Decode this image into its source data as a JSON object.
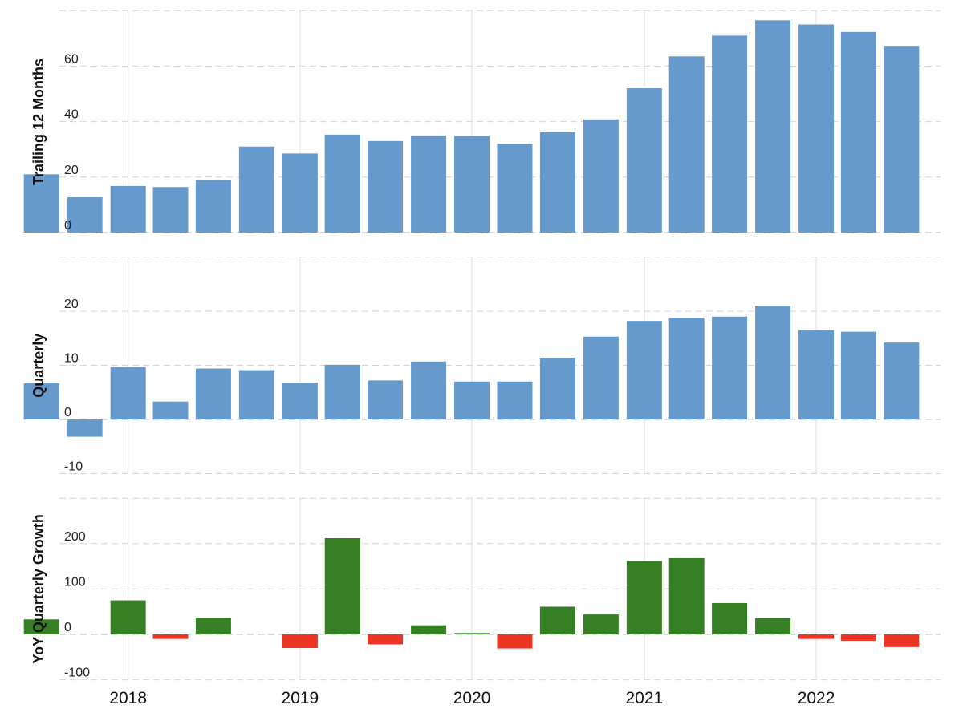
{
  "chart_data": [
    {
      "type": "bar",
      "ylabel": "Trailing 12 Months",
      "ylim": [
        0,
        80
      ],
      "yticks": [
        0,
        20,
        40,
        60
      ],
      "x": [
        "2017-07-01",
        "2017-10-01",
        "2018-01-01",
        "2018-04-01",
        "2018-07-01",
        "2018-10-01",
        "2019-01-01",
        "2019-04-01",
        "2019-07-01",
        "2019-10-01",
        "2020-01-01",
        "2020-04-01",
        "2020-07-01",
        "2020-10-01",
        "2021-01-01",
        "2021-04-01",
        "2021-07-01",
        "2021-10-01",
        "2022-01-01",
        "2022-04-01",
        "2022-07-01"
      ],
      "values": [
        21,
        12.7,
        16.8,
        16.4,
        19,
        31,
        28.5,
        35.3,
        33,
        35,
        34.8,
        32,
        36.2,
        40.8,
        52,
        63.5,
        71,
        76.5,
        75,
        72.3,
        67.3
      ],
      "color": "#6699cc",
      "grid": true
    },
    {
      "type": "bar",
      "ylabel": "Quarterly",
      "ylim": [
        -10,
        30
      ],
      "yticks": [
        -10,
        0,
        10,
        20
      ],
      "x": [
        "2017-07-01",
        "2017-10-01",
        "2018-01-01",
        "2018-04-01",
        "2018-07-01",
        "2018-10-01",
        "2019-01-01",
        "2019-04-01",
        "2019-07-01",
        "2019-10-01",
        "2020-01-01",
        "2020-04-01",
        "2020-07-01",
        "2020-10-01",
        "2021-01-01",
        "2021-04-01",
        "2021-07-01",
        "2021-10-01",
        "2022-01-01",
        "2022-04-01",
        "2022-07-01"
      ],
      "values": [
        6.7,
        -3.2,
        9.7,
        3.3,
        9.4,
        9.1,
        6.8,
        10.1,
        7.2,
        10.7,
        7,
        7,
        11.4,
        15.3,
        18.2,
        18.8,
        19,
        21,
        16.5,
        16.2,
        14.2
      ],
      "color": "#6699cc",
      "grid": true
    },
    {
      "type": "bar",
      "ylabel": "YoY Quarterly Growth",
      "ylim": [
        -100,
        300
      ],
      "yticks": [
        -100,
        0,
        100,
        200
      ],
      "x": [
        "2017-07-01",
        "2017-10-01",
        "2018-01-01",
        "2018-04-01",
        "2018-07-01",
        "2018-10-01",
        "2019-01-01",
        "2019-04-01",
        "2019-07-01",
        "2019-10-01",
        "2020-01-01",
        "2020-04-01",
        "2020-07-01",
        "2020-10-01",
        "2021-01-01",
        "2021-04-01",
        "2021-07-01",
        "2021-10-01",
        "2022-01-01",
        "2022-04-01",
        "2022-07-01"
      ],
      "values": [
        33,
        null,
        75,
        -10,
        37,
        null,
        -30,
        212,
        -22,
        20,
        3,
        -31,
        61,
        44,
        162,
        168,
        69,
        36,
        -10,
        -14,
        -28
      ],
      "positive_color": "#367f24",
      "negative_color": "#ee3524",
      "grid": true
    }
  ],
  "xaxis": {
    "tick_labels": [
      "2018",
      "2019",
      "2020",
      "2021",
      "2022"
    ],
    "tick_dates": [
      "2018-01-01",
      "2019-01-01",
      "2020-01-01",
      "2021-01-01",
      "2022-01-01"
    ]
  }
}
